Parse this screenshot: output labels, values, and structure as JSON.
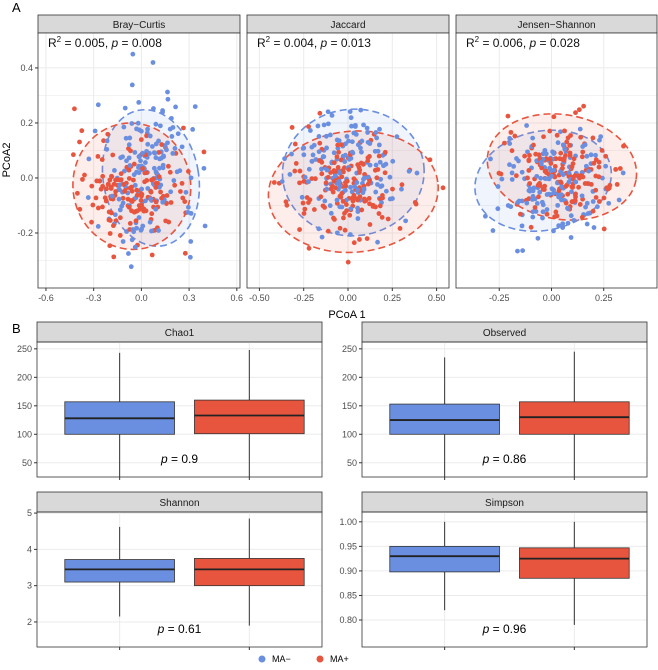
{
  "colors": {
    "ma_minus": "#6A8FE0",
    "ma_plus": "#E8553F",
    "strip": "#D9D9D9",
    "grid": "#EBEBEB"
  },
  "legend": [
    {
      "label": "MA−",
      "color": "#6A8FE0"
    },
    {
      "label": "MA+",
      "color": "#E8553F"
    }
  ],
  "chart_data": [
    {
      "type": "scatter",
      "panel_label": "A",
      "xlabel": "PCoA 1",
      "ylabel": "PCoA2",
      "ylim": [
        -0.4,
        0.527
      ],
      "yticks": [
        "0.4",
        "0.2",
        "0.0",
        "-0.2"
      ],
      "note": "points approximated; ellipses are 95% group ellipses",
      "facets": [
        {
          "title": "Bray−Curtis",
          "stat_r2": "0.005",
          "stat_p": "0.008",
          "xlim": [
            -0.65,
            0.62
          ],
          "xticks": [
            "-0.6",
            "-0.3",
            "0.0",
            "0.3",
            "0.6"
          ],
          "xtick_values": [
            -0.6,
            -0.3,
            0,
            0.3,
            0.6
          ],
          "groups": [
            {
              "name": "MA−",
              "cx": 0.03,
              "cy": 0.02,
              "sx": 0.16,
              "sy": 0.13,
              "ell": [
                0.06,
                0.0,
                0.3,
                0.25,
                -10
              ]
            },
            {
              "name": "MA+",
              "cx": -0.05,
              "cy": -0.04,
              "sx": 0.18,
              "sy": 0.1,
              "ell": [
                -0.06,
                -0.03,
                0.37,
                0.23,
                -8
              ]
            }
          ]
        },
        {
          "title": "Jaccard",
          "stat_r2": "0.004",
          "stat_p": "0.013",
          "xlim": [
            -0.57,
            0.57
          ],
          "xticks": [
            "-0.50",
            "-0.25",
            "0.00",
            "0.25",
            "0.50"
          ],
          "xtick_values": [
            -0.5,
            -0.25,
            0,
            0.25,
            0.5
          ],
          "groups": [
            {
              "name": "MA−",
              "cx": 0.0,
              "cy": 0.02,
              "sx": 0.15,
              "sy": 0.11,
              "ell": [
                0.03,
                0.02,
                0.4,
                0.23,
                -5
              ]
            },
            {
              "name": "MA+",
              "cx": 0.0,
              "cy": -0.02,
              "sx": 0.17,
              "sy": 0.09,
              "ell": [
                0.03,
                -0.05,
                0.48,
                0.22,
                -5
              ]
            }
          ]
        },
        {
          "title": "Jensen−Shannon",
          "stat_r2": "0.006",
          "stat_p": "0.028",
          "xlim": [
            -0.457,
            0.505
          ],
          "xticks": [
            "-0.25",
            "0.00",
            "0.25"
          ],
          "xtick_values": [
            -0.25,
            0,
            0.25
          ],
          "groups": [
            {
              "name": "MA−",
              "cx": 0.0,
              "cy": -0.03,
              "sx": 0.13,
              "sy": 0.1,
              "ell": [
                -0.04,
                -0.01,
                0.33,
                0.18,
                -12
              ]
            },
            {
              "name": "MA+",
              "cx": 0.05,
              "cy": 0.03,
              "sx": 0.13,
              "sy": 0.08,
              "ell": [
                0.05,
                0.04,
                0.36,
                0.19,
                10
              ]
            }
          ]
        }
      ]
    },
    {
      "type": "box",
      "panel_label": "B",
      "groups": [
        "MA−",
        "MA+"
      ],
      "facets": [
        {
          "title": "Chao1",
          "p": "0.9",
          "ylim": [
            25,
            262
          ],
          "yticks": [
            50,
            100,
            150,
            200,
            250
          ],
          "ytick_labels": [
            "50",
            "100",
            "150",
            "200",
            "250"
          ],
          "boxes": [
            {
              "min": 10,
              "q1": 100,
              "median": 128,
              "q3": 157,
              "max": 243
            },
            {
              "min": 10,
              "q1": 101,
              "median": 133,
              "q3": 160,
              "max": 248
            }
          ]
        },
        {
          "title": "Observed",
          "p": "0.86",
          "ylim": [
            25,
            262
          ],
          "yticks": [
            50,
            100,
            150,
            200,
            250
          ],
          "ytick_labels": [
            "50",
            "100",
            "150",
            "200",
            "250"
          ],
          "boxes": [
            {
              "min": 8,
              "q1": 100,
              "median": 125,
              "q3": 153,
              "max": 235
            },
            {
              "min": 10,
              "q1": 100,
              "median": 130,
              "q3": 157,
              "max": 245
            }
          ]
        },
        {
          "title": "Shannon",
          "p": "0.61",
          "ylim": [
            1.31,
            5.03
          ],
          "yticks": [
            2,
            3,
            4,
            5
          ],
          "ytick_labels": [
            "2",
            "3",
            "4",
            "5"
          ],
          "boxes": [
            {
              "min": 2.15,
              "q1": 3.1,
              "median": 3.45,
              "q3": 3.72,
              "max": 4.62
            },
            {
              "min": 1.9,
              "q1": 3.0,
              "median": 3.45,
              "q3": 3.75,
              "max": 4.85
            }
          ]
        },
        {
          "title": "Simpson",
          "p": "0.96",
          "ylim": [
            0.745,
            1.02
          ],
          "yticks": [
            0.8,
            0.85,
            0.9,
            0.95,
            1.0
          ],
          "ytick_labels": [
            "0.80",
            "0.85",
            "0.90",
            "0.95",
            "1.00"
          ],
          "boxes": [
            {
              "min": 0.82,
              "q1": 0.898,
              "median": 0.93,
              "q3": 0.95,
              "max": 1.0
            },
            {
              "min": 0.79,
              "q1": 0.885,
              "median": 0.925,
              "q3": 0.947,
              "max": 1.0
            }
          ]
        }
      ]
    }
  ]
}
